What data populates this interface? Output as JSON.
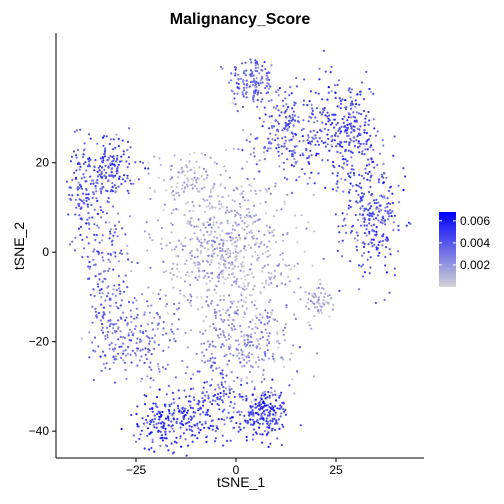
{
  "chart_data": {
    "type": "scatter",
    "title": "Malignancy_Score",
    "xlabel": "tSNE_1",
    "ylabel": "tSNE_2",
    "xlim": [
      -45,
      47
    ],
    "ylim": [
      -46,
      49
    ],
    "x_ticks": [
      -25,
      0,
      25
    ],
    "x_tick_labels": [
      "−25",
      "0",
      "25"
    ],
    "y_ticks": [
      -40,
      -20,
      0,
      20
    ],
    "y_tick_labels": [
      "−40",
      "−20",
      "0",
      "20"
    ],
    "grid": false,
    "legend_placement": "right",
    "colorbar": {
      "min": 0,
      "max": 0.0068,
      "ticks": [
        0.002,
        0.004,
        0.006
      ],
      "tick_labels": [
        "0.002",
        "0.004",
        "0.006"
      ],
      "low_color": "#d3d3d3",
      "high_color": "#0000ff"
    },
    "clusters": [
      {
        "region": "top-center",
        "cx": 4,
        "cy": 38,
        "sx": 3,
        "sy": 3,
        "n": 140,
        "score": 0.0035
      },
      {
        "region": "top-right-upper",
        "cx": 14,
        "cy": 27,
        "sx": 5,
        "sy": 5,
        "n": 240,
        "score": 0.0038
      },
      {
        "region": "top-right-far",
        "cx": 28,
        "cy": 27,
        "sx": 4,
        "sy": 6,
        "n": 260,
        "score": 0.0042
      },
      {
        "region": "right-mid",
        "cx": 34,
        "cy": 8,
        "sx": 4,
        "sy": 7,
        "n": 260,
        "score": 0.0043
      },
      {
        "region": "upper-left",
        "cx": -32,
        "cy": 19,
        "sx": 3.5,
        "sy": 3.5,
        "n": 170,
        "score": 0.0042
      },
      {
        "region": "left-edge",
        "cx": -38,
        "cy": 12,
        "sx": 2,
        "sy": 6,
        "n": 110,
        "score": 0.004
      },
      {
        "region": "left-mid",
        "cx": -32,
        "cy": -5,
        "sx": 3,
        "sy": 9,
        "n": 170,
        "score": 0.0034
      },
      {
        "region": "center",
        "cx": -2,
        "cy": 0,
        "sx": 9,
        "sy": 9,
        "n": 650,
        "score": 0.0012
      },
      {
        "region": "center-lower",
        "cx": 2,
        "cy": -20,
        "sx": 7,
        "sy": 5,
        "n": 260,
        "score": 0.002
      },
      {
        "region": "upper-center",
        "cx": -12,
        "cy": 16,
        "sx": 4,
        "sy": 3,
        "n": 90,
        "score": 0.001
      },
      {
        "region": "right-small",
        "cx": 21,
        "cy": -11,
        "sx": 2,
        "sy": 2,
        "n": 60,
        "score": 0.001
      },
      {
        "region": "bottom-left",
        "cx": -16,
        "cy": -38,
        "sx": 5,
        "sy": 3,
        "n": 220,
        "score": 0.0048
      },
      {
        "region": "bottom-mid-left",
        "cx": -5,
        "cy": -33,
        "sx": 4,
        "sy": 5,
        "n": 130,
        "score": 0.004
      },
      {
        "region": "bottom-right",
        "cx": 7,
        "cy": -36,
        "sx": 3,
        "sy": 3,
        "n": 180,
        "score": 0.005
      },
      {
        "region": "lower-left",
        "cx": -25,
        "cy": -20,
        "sx": 5,
        "sy": 5,
        "n": 170,
        "score": 0.003
      }
    ]
  }
}
